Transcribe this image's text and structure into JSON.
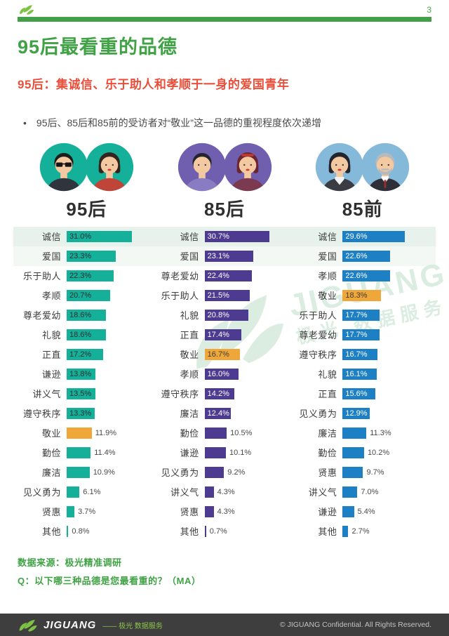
{
  "page": {
    "number": "3",
    "title": "95后最看重的品德",
    "subtitle": "95后：集诚信、乐于助人和孝顺于一身的爱国青年",
    "bullet": "95后、85后和85前的受访者对“敬业”这一品德的重视程度依次递增",
    "source": "数据来源：极光精准调研",
    "question": "Q：以下哪三种品德是您最看重的？（MA）"
  },
  "colors": {
    "brand_green": "#43a047",
    "title_green": "#3fa244",
    "subtitle_red": "#eb4e39",
    "highlight_orange": "#f0a73a",
    "teal": "#14b09a",
    "purple": "#4d3a91",
    "blue": "#1d7fc4",
    "footer_bg": "#3e3e3e"
  },
  "icons": {
    "logo": "jiguang-leaf-bird-logo",
    "avatars": [
      "male-sunglasses",
      "female-bob",
      "male-sweater",
      "female-headband",
      "female-collar",
      "male-gray-beard"
    ]
  },
  "chart_data": [
    {
      "type": "bar",
      "orientation": "horizontal",
      "title": "95后",
      "unit": "%",
      "xlim": [
        0,
        31
      ],
      "bar_color": "#14b09a",
      "avatar_color": "#14b09a",
      "label_inside_color": "#2f2f2f",
      "highlight_category": "敬业",
      "highlight_color": "#f0a73a",
      "categories": [
        "诚信",
        "爱国",
        "乐于助人",
        "孝顺",
        "尊老爱幼",
        "礼貌",
        "正直",
        "谦逊",
        "讲义气",
        "遵守秩序",
        "敬业",
        "勤俭",
        "廉洁",
        "见义勇为",
        "贤惠",
        "其他"
      ],
      "values": [
        31.0,
        23.3,
        22.3,
        20.7,
        18.6,
        18.6,
        17.2,
        13.8,
        13.5,
        13.3,
        11.9,
        11.4,
        10.9,
        6.1,
        3.7,
        0.8
      ]
    },
    {
      "type": "bar",
      "orientation": "horizontal",
      "title": "85后",
      "unit": "%",
      "xlim": [
        0,
        31
      ],
      "bar_color": "#4d3a91",
      "avatar_color": "#6f5fae",
      "label_inside_color": "#ffffff",
      "highlight_category": "敬业",
      "highlight_color": "#f0a73a",
      "categories": [
        "诚信",
        "爱国",
        "尊老爱幼",
        "乐于助人",
        "礼貌",
        "正直",
        "敬业",
        "孝顺",
        "遵守秩序",
        "廉洁",
        "勤俭",
        "谦逊",
        "见义勇为",
        "讲义气",
        "贤惠",
        "其他"
      ],
      "values": [
        30.7,
        23.1,
        22.4,
        21.5,
        20.8,
        17.4,
        16.7,
        16.0,
        14.2,
        12.4,
        10.5,
        10.1,
        9.2,
        4.3,
        4.3,
        0.7
      ]
    },
    {
      "type": "bar",
      "orientation": "horizontal",
      "title": "85前",
      "unit": "%",
      "xlim": [
        0,
        31
      ],
      "bar_color": "#1d7fc4",
      "avatar_color": "#85b9da",
      "label_inside_color": "#ffffff",
      "highlight_category": "敬业",
      "highlight_color": "#f0a73a",
      "categories": [
        "诚信",
        "爱国",
        "孝顺",
        "敬业",
        "乐于助人",
        "尊老爱幼",
        "遵守秩序",
        "礼貌",
        "正直",
        "见义勇为",
        "廉洁",
        "勤俭",
        "贤惠",
        "讲义气",
        "谦逊",
        "其他"
      ],
      "values": [
        29.6,
        22.6,
        22.6,
        18.3,
        17.7,
        17.7,
        16.7,
        16.1,
        15.6,
        12.9,
        11.3,
        10.2,
        9.7,
        7.0,
        5.4,
        2.7
      ]
    }
  ],
  "watermark": {
    "en": "JIGUANG",
    "cn": "极光 数据服务"
  },
  "footer": {
    "brand": "JIGUANG",
    "brand_sub": "—— 极光 数据服务",
    "copyright": "© JIGUANG  Confidential. All Rights Reserved."
  }
}
